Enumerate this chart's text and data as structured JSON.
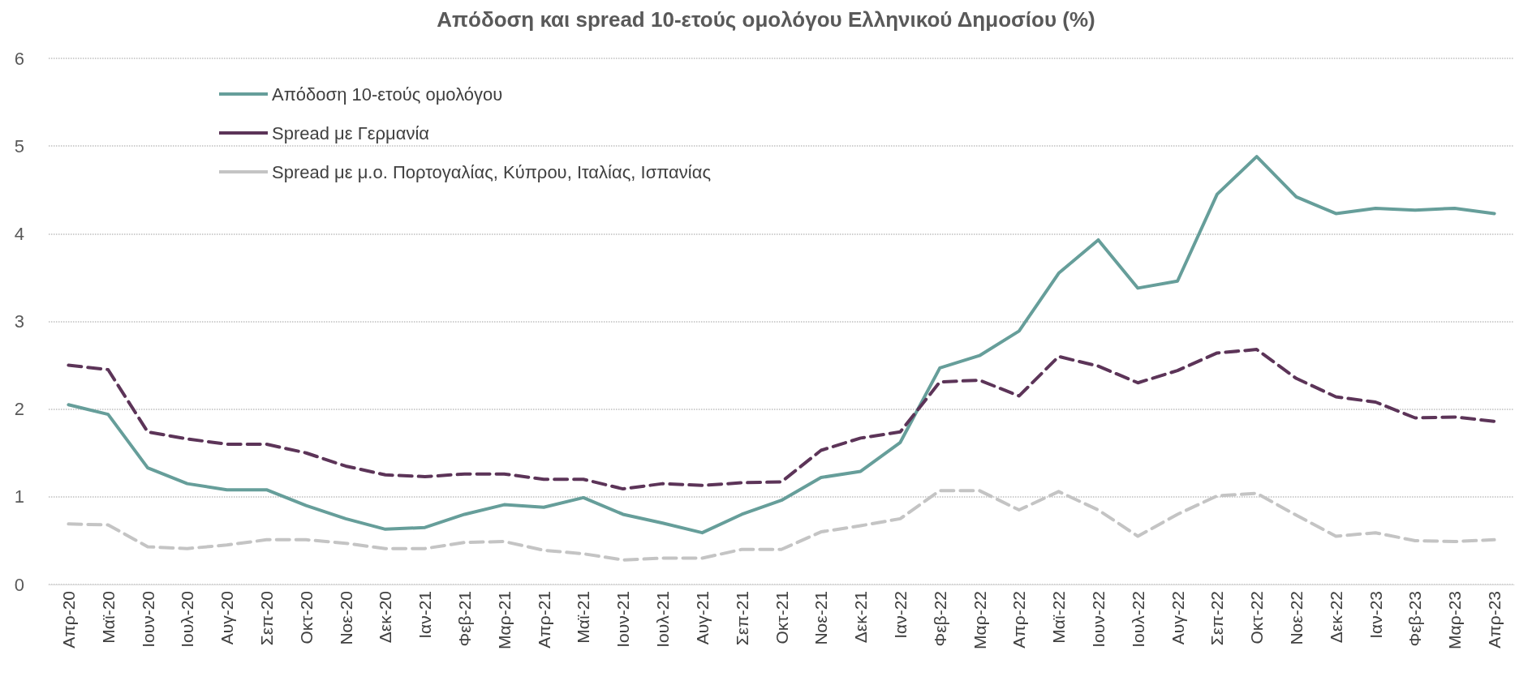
{
  "chart_data": {
    "type": "line",
    "title": "Απόδοση και spread 10-ετούς ομολόγου Ελληνικού Δημοσίου (%)",
    "categories": [
      "Απρ-20",
      "Μαϊ-20",
      "Ιουν-20",
      "Ιουλ-20",
      "Αυγ-20",
      "Σεπ-20",
      "Οκτ-20",
      "Νοε-20",
      "Δεκ-20",
      "Ιαν-21",
      "Φεβ-21",
      "Μαρ-21",
      "Απρ-21",
      "Μαϊ-21",
      "Ιουν-21",
      "Ιουλ-21",
      "Αυγ-21",
      "Σεπ-21",
      "Οκτ-21",
      "Νοε-21",
      "Δεκ-21",
      "Ιαν-22",
      "Φεβ-22",
      "Μαρ-22",
      "Απρ-22",
      "Μαϊ-22",
      "Ιουν-22",
      "Ιουλ-22",
      "Αυγ-22",
      "Σεπ-22",
      "Οκτ-22",
      "Νοε-22",
      "Δεκ-22",
      "Ιαν-23",
      "Φεβ-23",
      "Μαρ-23",
      "Απρ-23"
    ],
    "series": [
      {
        "name": "Απόδοση 10-ετούς ομολόγου",
        "color": "#669e9a",
        "line_style": "solid",
        "values": [
          2.05,
          1.94,
          1.33,
          1.15,
          1.08,
          1.08,
          0.9,
          0.75,
          0.63,
          0.65,
          0.8,
          0.91,
          0.88,
          0.99,
          0.8,
          0.7,
          0.59,
          0.8,
          0.96,
          1.22,
          1.29,
          1.62,
          2.47,
          2.61,
          2.89,
          3.55,
          3.93,
          3.38,
          3.46,
          4.45,
          4.88,
          4.42,
          4.23,
          4.29,
          4.27,
          4.29,
          4.23
        ]
      },
      {
        "name": "Spread με Γερμανία",
        "color": "#5c3458",
        "line_style": "dashed",
        "values": [
          2.5,
          2.45,
          1.74,
          1.66,
          1.6,
          1.6,
          1.5,
          1.35,
          1.25,
          1.23,
          1.26,
          1.26,
          1.2,
          1.2,
          1.09,
          1.15,
          1.13,
          1.16,
          1.17,
          1.53,
          1.67,
          1.74,
          2.31,
          2.33,
          2.15,
          2.6,
          2.49,
          2.3,
          2.44,
          2.64,
          2.68,
          2.35,
          2.14,
          2.08,
          1.9,
          1.91,
          1.86
        ]
      },
      {
        "name": "Spread με μ.ο. Πορτογαλίας, Κύπρου, Ιταλίας, Ισπανίας",
        "color": "#c4c4c4",
        "line_style": "dashed",
        "values": [
          0.69,
          0.68,
          0.43,
          0.41,
          0.45,
          0.51,
          0.51,
          0.47,
          0.41,
          0.41,
          0.48,
          0.49,
          0.39,
          0.35,
          0.28,
          0.3,
          0.3,
          0.4,
          0.4,
          0.6,
          0.67,
          0.75,
          1.07,
          1.07,
          0.85,
          1.06,
          0.85,
          0.55,
          0.8,
          1.01,
          1.04,
          0.79,
          0.55,
          0.59,
          0.5,
          0.49,
          0.51
        ]
      }
    ],
    "ylim": [
      0,
      6
    ],
    "yticks": [
      0,
      1,
      2,
      3,
      4,
      5,
      6
    ],
    "grid": "y",
    "legend": "top left",
    "marker": "none"
  }
}
